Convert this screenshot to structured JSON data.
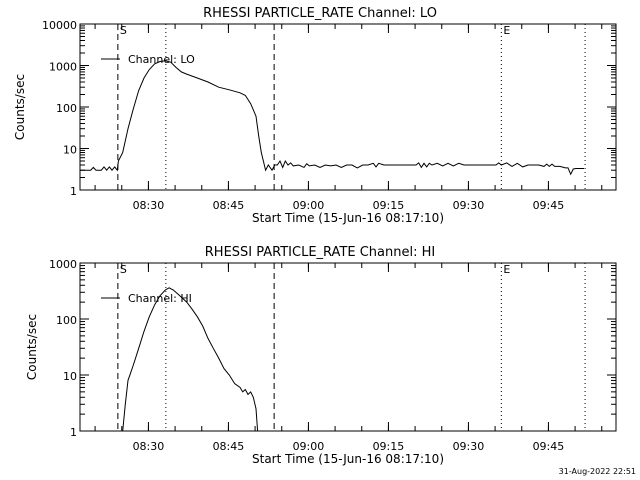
{
  "timestamp": "31-Aug-2022 22:51",
  "chart_data": [
    {
      "type": "line",
      "title": "RHESSI PARTICLE_RATE Channel: LO",
      "xlabel": "Start Time (15-Jun-16 08:17:10)",
      "ylabel": "Counts/sec",
      "yscale": "log",
      "ylim": [
        1,
        10000
      ],
      "xlim_minutes_from_start": [
        0,
        100.5
      ],
      "x_tick_labels": [
        "08:30",
        "08:45",
        "09:00",
        "09:15",
        "09:30",
        "09:45"
      ],
      "x_tick_minutes": [
        12.83,
        27.83,
        42.83,
        57.83,
        72.83,
        87.83
      ],
      "y_tick_labels": [
        "1",
        "10",
        "100",
        "1000",
        "10000"
      ],
      "y_tick_values": [
        1,
        10,
        100,
        1000,
        10000
      ],
      "legend": "Channel: LO",
      "markers": [
        {
          "label": "S",
          "minute": 7.1,
          "style": "dashed"
        },
        {
          "label": "",
          "minute": 16.1,
          "style": "dotted"
        },
        {
          "label": "",
          "minute": 36.4,
          "style": "dashed"
        },
        {
          "label": "E",
          "minute": 79.0,
          "style": "dotted"
        },
        {
          "label": "",
          "minute": 94.7,
          "style": "dotted"
        }
      ],
      "series": [
        {
          "name": "LO",
          "points": [
            [
              0,
              3
            ],
            [
              2,
              3
            ],
            [
              2.5,
              3.5
            ],
            [
              3,
              3
            ],
            [
              4,
              3
            ],
            [
              4.5,
              3.6
            ],
            [
              5,
              3
            ],
            [
              5.5,
              3.6
            ],
            [
              6,
              3
            ],
            [
              6.5,
              3.6
            ],
            [
              7,
              3
            ],
            [
              7.2,
              5
            ],
            [
              8,
              8
            ],
            [
              9,
              30
            ],
            [
              10,
              90
            ],
            [
              11,
              250
            ],
            [
              12,
              500
            ],
            [
              13,
              800
            ],
            [
              14,
              1100
            ],
            [
              15,
              1250
            ],
            [
              16,
              1300
            ],
            [
              17,
              1200
            ],
            [
              18,
              900
            ],
            [
              19,
              700
            ],
            [
              20,
              620
            ],
            [
              22,
              500
            ],
            [
              24,
              400
            ],
            [
              26,
              300
            ],
            [
              28,
              260
            ],
            [
              30,
              220
            ],
            [
              31,
              190
            ],
            [
              32,
              120
            ],
            [
              33,
              60
            ],
            [
              33.5,
              20
            ],
            [
              34,
              8
            ],
            [
              34.8,
              3
            ],
            [
              35.3,
              4
            ],
            [
              36,
              3
            ],
            [
              36.5,
              4
            ],
            [
              37,
              4
            ],
            [
              37.5,
              5
            ],
            [
              38,
              3.5
            ],
            [
              38.5,
              5
            ],
            [
              39,
              4
            ],
            [
              39.5,
              4.5
            ],
            [
              40,
              3.8
            ],
            [
              41,
              4
            ],
            [
              42,
              3.5
            ],
            [
              42.5,
              4.3
            ],
            [
              43,
              3.8
            ],
            [
              44,
              4
            ],
            [
              45,
              3.5
            ],
            [
              46,
              4
            ],
            [
              47,
              3.8
            ],
            [
              48,
              4
            ],
            [
              49,
              3.5
            ],
            [
              50,
              4
            ],
            [
              51,
              4
            ],
            [
              52,
              3.4
            ],
            [
              53,
              4
            ],
            [
              54,
              4
            ],
            [
              55,
              4.4
            ],
            [
              55.5,
              3.6
            ],
            [
              56,
              4.4
            ],
            [
              57,
              4
            ],
            [
              63,
              4
            ],
            [
              63.5,
              4.5
            ],
            [
              64,
              3.5
            ],
            [
              64.5,
              4.4
            ],
            [
              65,
              3.6
            ],
            [
              65.5,
              4.4
            ],
            [
              66,
              4
            ],
            [
              67,
              4.4
            ],
            [
              68,
              3.8
            ],
            [
              69,
              4.4
            ],
            [
              70,
              3.8
            ],
            [
              71,
              4.4
            ],
            [
              72,
              4
            ],
            [
              78,
              4
            ],
            [
              78.5,
              4.5
            ],
            [
              79,
              4
            ],
            [
              80,
              4.5
            ],
            [
              81,
              3.7
            ],
            [
              82,
              4.4
            ],
            [
              83,
              3.6
            ],
            [
              84,
              4
            ],
            [
              86,
              4
            ],
            [
              87,
              3.7
            ],
            [
              87.5,
              4.2
            ],
            [
              88,
              3.7
            ],
            [
              88.5,
              4.2
            ],
            [
              89,
              3.7
            ],
            [
              90,
              3.7
            ],
            [
              91,
              3.4
            ],
            [
              91.5,
              3.4
            ],
            [
              92,
              2.4
            ],
            [
              92.5,
              3.2
            ],
            [
              93,
              3.3
            ],
            [
              94.5,
              3.3
            ]
          ]
        }
      ]
    },
    {
      "type": "line",
      "title": "RHESSI PARTICLE_RATE Channel: HI",
      "xlabel": "Start Time (15-Jun-16 08:17:10)",
      "ylabel": "Counts/sec",
      "yscale": "log",
      "ylim": [
        1,
        1000
      ],
      "xlim_minutes_from_start": [
        0,
        100.5
      ],
      "x_tick_labels": [
        "08:30",
        "08:45",
        "09:00",
        "09:15",
        "09:30",
        "09:45"
      ],
      "x_tick_minutes": [
        12.83,
        27.83,
        42.83,
        57.83,
        72.83,
        87.83
      ],
      "y_tick_labels": [
        "1",
        "10",
        "100",
        "1000"
      ],
      "y_tick_values": [
        1,
        10,
        100,
        1000
      ],
      "legend": "Channel: HI",
      "markers": [
        {
          "label": "S",
          "minute": 7.1,
          "style": "dashed"
        },
        {
          "label": "",
          "minute": 16.1,
          "style": "dotted"
        },
        {
          "label": "",
          "minute": 36.4,
          "style": "dashed"
        },
        {
          "label": "E",
          "minute": 79.0,
          "style": "dotted"
        },
        {
          "label": "",
          "minute": 94.7,
          "style": "dotted"
        }
      ],
      "series": [
        {
          "name": "HI",
          "points": [
            [
              8,
              1
            ],
            [
              8.5,
              3
            ],
            [
              9,
              8
            ],
            [
              9.5,
              11
            ],
            [
              10,
              15
            ],
            [
              11,
              30
            ],
            [
              12,
              60
            ],
            [
              13,
              110
            ],
            [
              14,
              180
            ],
            [
              15,
              260
            ],
            [
              16,
              330
            ],
            [
              16.7,
              360
            ],
            [
              17.5,
              330
            ],
            [
              18.5,
              270
            ],
            [
              20,
              200
            ],
            [
              21,
              150
            ],
            [
              22,
              110
            ],
            [
              23,
              75
            ],
            [
              24,
              45
            ],
            [
              25,
              30
            ],
            [
              26,
              20
            ],
            [
              27,
              13
            ],
            [
              28,
              10
            ],
            [
              29,
              7
            ],
            [
              30,
              6
            ],
            [
              30.5,
              5
            ],
            [
              31,
              5.5
            ],
            [
              31.5,
              4.5
            ],
            [
              32,
              5
            ],
            [
              32.5,
              4
            ],
            [
              33,
              2.5
            ],
            [
              33.3,
              1
            ]
          ]
        }
      ]
    }
  ]
}
